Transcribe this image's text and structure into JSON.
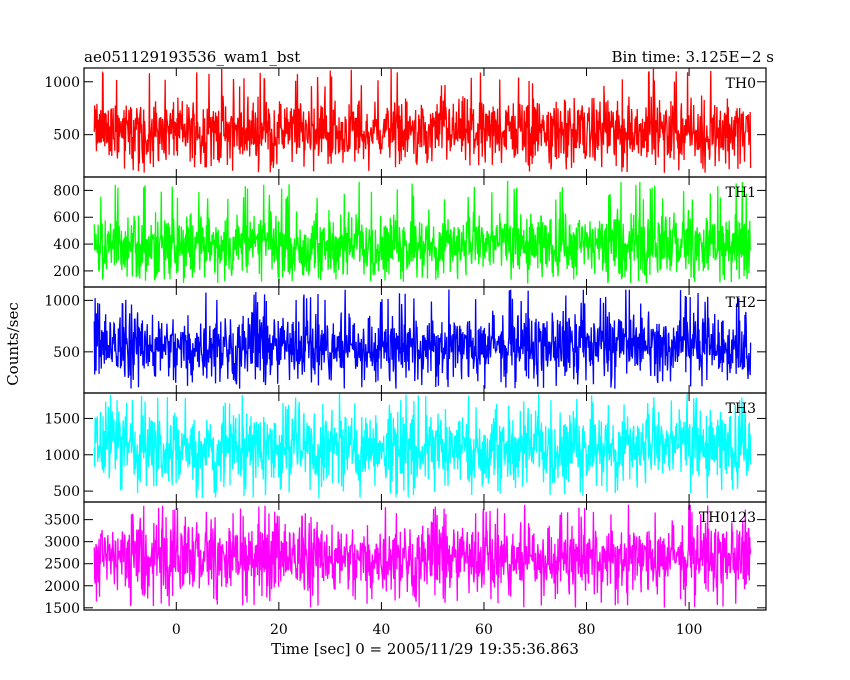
{
  "header": {
    "title": "ae051129193536_wam1_bst",
    "bin_time": "Bin time: 3.125E−2 s"
  },
  "axes": {
    "xlabel": "Time [sec] 0 = 2005/11/29 19:35:36.863",
    "ylabel": "Counts/sec"
  },
  "chart_data": {
    "type": "line",
    "title": "ae051129193536_wam1_bst",
    "xlabel": "Time [sec] 0 = 2005/11/29 19:35:36.863",
    "ylabel": "Counts/sec",
    "xlim": [
      -18,
      115
    ],
    "x_ticks": [
      0,
      20,
      40,
      60,
      80,
      100
    ],
    "x_data_range": [
      -16,
      112
    ],
    "bin_time_sec": 0.03125,
    "grid": false,
    "panels": [
      {
        "name": "TH0",
        "color": "#ff0000",
        "ylim": [
          100,
          1130
        ],
        "y_ticks": [
          500,
          1000
        ],
        "mean": 540,
        "typical_range": [
          300,
          820
        ],
        "extreme_range": [
          140,
          1130
        ]
      },
      {
        "name": "TH1",
        "color": "#00ff00",
        "ylim": [
          80,
          900
        ],
        "y_ticks": [
          200,
          400,
          600,
          800
        ],
        "mean": 400,
        "typical_range": [
          230,
          630
        ],
        "extreme_range": [
          100,
          880
        ]
      },
      {
        "name": "TH2",
        "color": "#0000ff",
        "ylim": [
          100,
          1130
        ],
        "y_ticks": [
          500,
          1000
        ],
        "mean": 560,
        "typical_range": [
          300,
          850
        ],
        "extreme_range": [
          140,
          1110
        ]
      },
      {
        "name": "TH3",
        "color": "#00ffff",
        "ylim": [
          350,
          1850
        ],
        "y_ticks": [
          500,
          1000,
          1500
        ],
        "mean": 1120,
        "typical_range": [
          700,
          1580
        ],
        "extreme_range": [
          390,
          1850
        ]
      },
      {
        "name": "TH0123",
        "color": "#ff00ff",
        "ylim": [
          1450,
          3900
        ],
        "y_ticks": [
          1500,
          2000,
          2500,
          3000,
          3500
        ],
        "mean": 2650,
        "typical_range": [
          2000,
          3350
        ],
        "extreme_range": [
          1500,
          3850
        ]
      }
    ]
  }
}
